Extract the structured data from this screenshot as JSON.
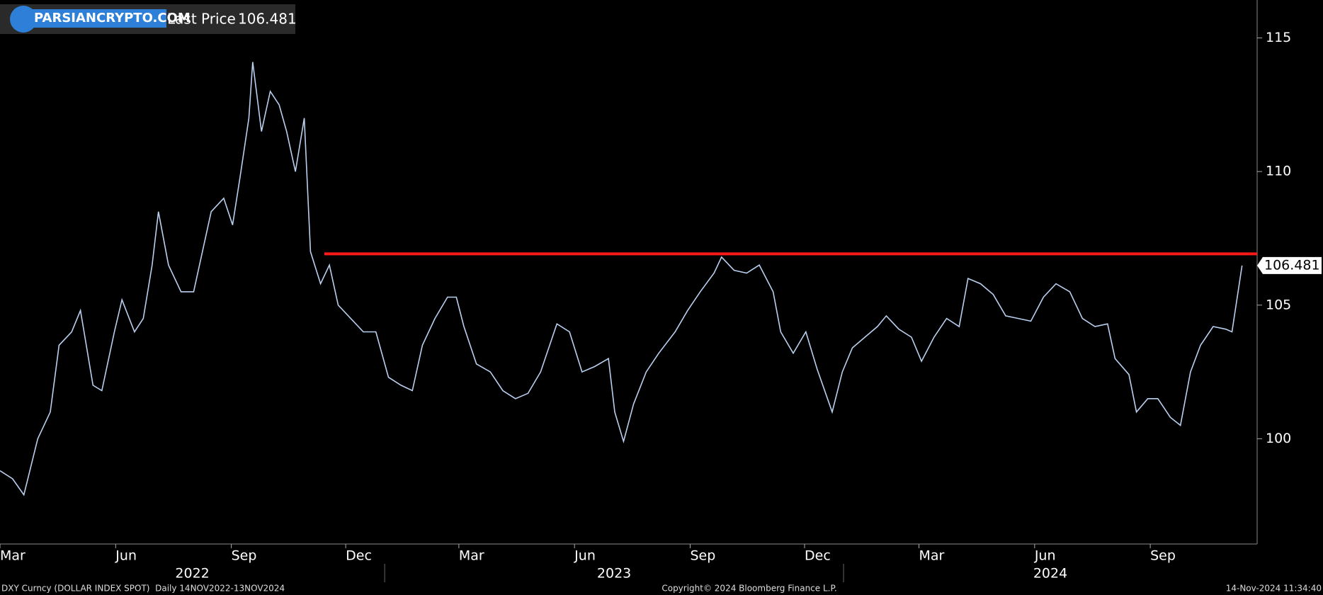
{
  "chart_data": {
    "type": "line",
    "watermark": "PARSIANCRYPTO.COM",
    "footer_left": "DXY Curncy (DOLLAR INDEX SPOT)  Daily 14NOV2022-13NOV2024",
    "footer_center": "Copyright© 2024 Bloomberg Finance L.P.",
    "footer_right": "14-Nov-2024 11:34:40",
    "x": [
      "2022-03-01",
      "2022-03-11",
      "2022-03-20",
      "2022-03-31",
      "2022-04-10",
      "2022-04-17",
      "2022-04-27",
      "2022-05-04",
      "2022-05-14",
      "2022-05-21",
      "2022-05-31",
      "2022-06-06",
      "2022-06-16",
      "2022-06-23",
      "2022-06-30",
      "2022-07-05",
      "2022-07-13",
      "2022-07-23",
      "2022-08-02",
      "2022-08-09",
      "2022-08-16",
      "2022-08-26",
      "2022-09-02",
      "2022-09-08",
      "2022-09-15",
      "2022-09-18",
      "2022-09-25",
      "2022-10-02",
      "2022-10-09",
      "2022-10-15",
      "2022-10-22",
      "2022-10-29",
      "2022-11-03",
      "2022-11-11",
      "2022-11-18",
      "2022-11-25",
      "2022-12-05",
      "2022-12-15",
      "2022-12-25",
      "2023-01-04",
      "2023-01-14",
      "2023-01-23",
      "2023-01-31",
      "2023-02-10",
      "2023-02-20",
      "2023-02-27",
      "2023-03-05",
      "2023-03-15",
      "2023-03-26",
      "2023-04-05",
      "2023-04-15",
      "2023-04-25",
      "2023-05-05",
      "2023-05-18",
      "2023-05-28",
      "2023-06-07",
      "2023-06-17",
      "2023-06-28",
      "2023-07-03",
      "2023-07-10",
      "2023-07-18",
      "2023-07-28",
      "2023-08-07",
      "2023-08-20",
      "2023-08-30",
      "2023-09-09",
      "2023-09-20",
      "2023-09-26",
      "2023-10-06",
      "2023-10-16",
      "2023-10-26",
      "2023-11-06",
      "2023-11-12",
      "2023-11-22",
      "2023-12-02",
      "2023-12-11",
      "2023-12-23",
      "2023-12-31",
      "2024-01-08",
      "2024-01-18",
      "2024-01-28",
      "2024-02-04",
      "2024-02-14",
      "2024-02-24",
      "2024-03-03",
      "2024-03-13",
      "2024-03-23",
      "2024-04-02",
      "2024-04-09",
      "2024-04-19",
      "2024-04-29",
      "2024-05-09",
      "2024-05-19",
      "2024-05-29",
      "2024-06-08",
      "2024-06-18",
      "2024-06-29",
      "2024-07-09",
      "2024-07-19",
      "2024-07-29",
      "2024-08-04",
      "2024-08-15",
      "2024-08-21",
      "2024-08-30",
      "2024-09-07",
      "2024-09-17",
      "2024-09-25",
      "2024-10-03",
      "2024-10-11",
      "2024-10-21",
      "2024-10-31",
      "2024-11-05",
      "2024-11-13"
    ],
    "series": [
      {
        "name": "Last Price",
        "color": "#b9cff0",
        "values": [
          98.8,
          98.5,
          97.9,
          100,
          101,
          103.5,
          104,
          104.8,
          102,
          101.8,
          104,
          105.2,
          104,
          104.5,
          106.5,
          108.5,
          106.5,
          105.5,
          105.5,
          107,
          108.5,
          109,
          108,
          109.8,
          112,
          114.1,
          111.5,
          113,
          112.5,
          111.5,
          110,
          112,
          107,
          105.8,
          106.5,
          105,
          104.5,
          104,
          104,
          102.3,
          102,
          101.8,
          103.5,
          104.5,
          105.3,
          105.3,
          104.2,
          102.8,
          102.5,
          101.8,
          101.5,
          101.7,
          102.5,
          104.3,
          104,
          102.5,
          102.7,
          103,
          101,
          99.9,
          101.3,
          102.5,
          103.2,
          104,
          104.8,
          105.5,
          106.2,
          106.8,
          106.3,
          106.2,
          106.5,
          105.5,
          104,
          103.2,
          104,
          102.6,
          101,
          102.5,
          103.4,
          103.8,
          104.2,
          104.6,
          104.1,
          103.8,
          102.9,
          103.8,
          104.5,
          104.2,
          106,
          105.8,
          105.4,
          104.6,
          104.5,
          104.4,
          105.3,
          105.8,
          105.5,
          104.5,
          104.2,
          104.3,
          103,
          102.4,
          101,
          101.5,
          101.5,
          100.8,
          100.5,
          102.5,
          103.5,
          104.2,
          104.1,
          104,
          106.481
        ]
      }
    ],
    "reference_line": {
      "value": 106.92,
      "start": "2022-11-14",
      "color": "#ff1a1a"
    },
    "xlim": [
      "2022-03-01",
      "2024-11-25"
    ],
    "xticks": [
      {
        "value": "2022-03-01",
        "label": "Mar"
      },
      {
        "value": "2022-06-01",
        "label": "Jun"
      },
      {
        "value": "2022-09-01",
        "label": "Sep"
      },
      {
        "value": "2022-12-01",
        "label": "Dec"
      },
      {
        "value": "2023-03-01",
        "label": "Mar"
      },
      {
        "value": "2023-06-01",
        "label": "Jun"
      },
      {
        "value": "2023-09-01",
        "label": "Sep"
      },
      {
        "value": "2023-12-01",
        "label": "Dec"
      },
      {
        "value": "2024-03-01",
        "label": "Mar"
      },
      {
        "value": "2024-06-01",
        "label": "Jun"
      },
      {
        "value": "2024-09-01",
        "label": "Sep"
      }
    ],
    "years": [
      "2022",
      "2023",
      "2024"
    ],
    "ylim": [
      96.06,
      116.42
    ],
    "yticks": [
      100,
      105,
      110,
      115
    ]
  }
}
